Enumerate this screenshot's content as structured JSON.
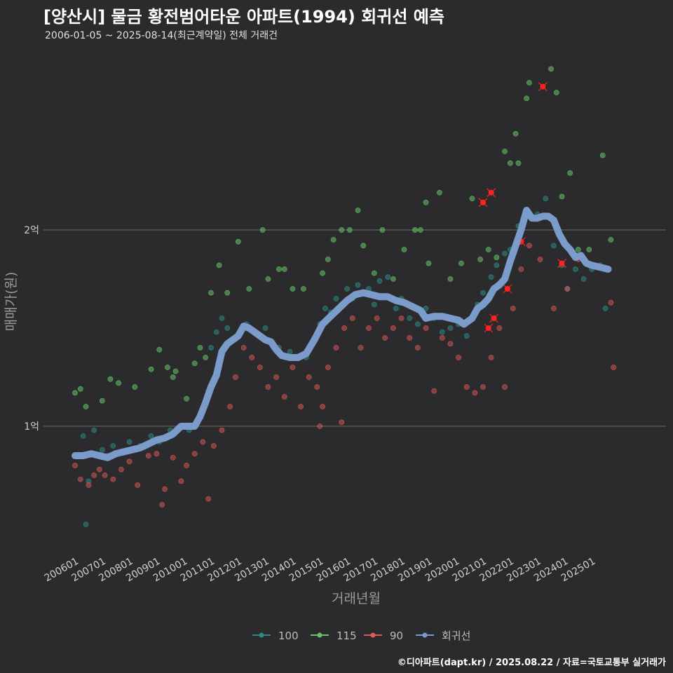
{
  "header": {
    "title": "[양산시] 물금 황전범어타운 아파트(1994) 회귀선 예측",
    "subtitle": "2006-01-05 ~ 2025-08-14(최근계약일) 전체 거래건"
  },
  "footer": {
    "credit": "©디아파트(dapt.kr) / 2025.08.22 / 자료=국토교통부 실거래가"
  },
  "colors": {
    "s100": "#2a8a84",
    "s115": "#66c466",
    "s90": "#e05a5a",
    "trend": "#7b9ccb",
    "highlight": "#ff2222"
  },
  "chart_data": {
    "type": "scatter",
    "xlabel": "거래년월",
    "ylabel": "매매가(원)",
    "x_ticks": [
      "200601",
      "200701",
      "200801",
      "200901",
      "201001",
      "201101",
      "201201",
      "201301",
      "201401",
      "201501",
      "201601",
      "201701",
      "201801",
      "201901",
      "202001",
      "202101",
      "202201",
      "202301",
      "202401",
      "202501"
    ],
    "y_ticks": [
      {
        "value": 1,
        "label": "1억"
      },
      {
        "value": 2,
        "label": "2억"
      }
    ],
    "ylim": [
      0.35,
      2.85
    ],
    "xlim": [
      2005.7,
      2026.5
    ],
    "grid": true,
    "legend_position": "bottom",
    "legend": [
      "100",
      "115",
      "90",
      "회귀선"
    ],
    "series": [
      {
        "name": "100",
        "points": [
          [
            2006.3,
            0.95
          ],
          [
            2006.5,
            0.72
          ],
          [
            2006.7,
            0.98
          ],
          [
            2007.0,
            0.88
          ],
          [
            2007.2,
            0.85
          ],
          [
            2007.4,
            0.9
          ],
          [
            2007.7,
            0.87
          ],
          [
            2008.0,
            0.92
          ],
          [
            2008.4,
            0.9
          ],
          [
            2008.8,
            0.95
          ],
          [
            2009.1,
            0.92
          ],
          [
            2009.5,
            0.98
          ],
          [
            2009.9,
            1.0
          ],
          [
            2010.2,
            0.98
          ],
          [
            2010.5,
            1.02
          ],
          [
            2010.9,
            1.18
          ],
          [
            2011.0,
            1.4
          ],
          [
            2011.2,
            1.48
          ],
          [
            2011.4,
            1.55
          ],
          [
            2011.6,
            1.5
          ],
          [
            2011.9,
            1.45
          ],
          [
            2012.3,
            1.52
          ],
          [
            2013.0,
            1.5
          ],
          [
            2013.5,
            1.4
          ],
          [
            2013.9,
            1.38
          ],
          [
            2014.5,
            1.35
          ],
          [
            2014.8,
            1.45
          ],
          [
            2015.0,
            1.52
          ],
          [
            2015.2,
            1.6
          ],
          [
            2015.4,
            1.58
          ],
          [
            2015.6,
            1.65
          ],
          [
            2015.8,
            1.62
          ],
          [
            2016.0,
            1.7
          ],
          [
            2016.2,
            1.65
          ],
          [
            2016.4,
            1.72
          ],
          [
            2016.6,
            1.68
          ],
          [
            2016.8,
            1.7
          ],
          [
            2017.0,
            1.62
          ],
          [
            2017.2,
            1.74
          ],
          [
            2017.5,
            1.76
          ],
          [
            2017.8,
            1.6
          ],
          [
            2018.0,
            1.65
          ],
          [
            2018.3,
            1.55
          ],
          [
            2018.6,
            1.52
          ],
          [
            2018.9,
            1.6
          ],
          [
            2019.2,
            1.55
          ],
          [
            2019.5,
            1.48
          ],
          [
            2019.8,
            1.5
          ],
          [
            2020.1,
            1.52
          ],
          [
            2020.4,
            1.46
          ],
          [
            2020.6,
            1.55
          ],
          [
            2020.8,
            1.62
          ],
          [
            2021.0,
            1.68
          ],
          [
            2021.3,
            1.76
          ],
          [
            2021.5,
            1.82
          ],
          [
            2021.8,
            1.88
          ],
          [
            2022.0,
            1.9
          ],
          [
            2022.3,
            2.02
          ],
          [
            2022.6,
            2.1
          ],
          [
            2023.0,
            2.08
          ],
          [
            2023.3,
            2.16
          ],
          [
            2023.6,
            1.92
          ],
          [
            2023.9,
            1.82
          ],
          [
            2024.1,
            1.7
          ],
          [
            2024.4,
            1.8
          ],
          [
            2024.7,
            1.75
          ],
          [
            2025.0,
            1.8
          ],
          [
            2025.3,
            1.82
          ],
          [
            2025.5,
            1.6
          ],
          [
            2006.4,
            0.5
          ]
        ]
      },
      {
        "name": "115",
        "points": [
          [
            2006.0,
            1.17
          ],
          [
            2006.2,
            1.19
          ],
          [
            2006.4,
            1.1
          ],
          [
            2007.0,
            1.13
          ],
          [
            2007.3,
            1.24
          ],
          [
            2007.6,
            1.22
          ],
          [
            2008.2,
            1.2
          ],
          [
            2008.8,
            1.29
          ],
          [
            2009.1,
            1.39
          ],
          [
            2009.4,
            1.3
          ],
          [
            2009.6,
            1.25
          ],
          [
            2009.7,
            1.28
          ],
          [
            2010.1,
            1.14
          ],
          [
            2010.4,
            1.32
          ],
          [
            2010.6,
            1.4
          ],
          [
            2010.8,
            1.35
          ],
          [
            2011.0,
            1.68
          ],
          [
            2011.3,
            1.82
          ],
          [
            2011.6,
            1.68
          ],
          [
            2012.0,
            1.94
          ],
          [
            2012.4,
            1.7
          ],
          [
            2012.9,
            2.0
          ],
          [
            2013.1,
            1.75
          ],
          [
            2013.5,
            1.8
          ],
          [
            2013.7,
            1.8
          ],
          [
            2014.0,
            1.7
          ],
          [
            2014.4,
            1.7
          ],
          [
            2015.1,
            1.78
          ],
          [
            2015.3,
            1.85
          ],
          [
            2015.5,
            1.95
          ],
          [
            2015.8,
            2.0
          ],
          [
            2016.1,
            2.0
          ],
          [
            2016.4,
            2.1
          ],
          [
            2016.6,
            1.92
          ],
          [
            2017.0,
            1.78
          ],
          [
            2017.3,
            2.0
          ],
          [
            2017.7,
            1.75
          ],
          [
            2018.1,
            1.9
          ],
          [
            2018.5,
            2.0
          ],
          [
            2018.7,
            2.0
          ],
          [
            2018.9,
            2.14
          ],
          [
            2019.0,
            1.83
          ],
          [
            2019.4,
            2.19
          ],
          [
            2019.8,
            1.75
          ],
          [
            2020.2,
            1.83
          ],
          [
            2020.6,
            2.16
          ],
          [
            2020.9,
            1.85
          ],
          [
            2021.2,
            1.9
          ],
          [
            2021.5,
            1.86
          ],
          [
            2021.8,
            2.4
          ],
          [
            2022.0,
            2.34
          ],
          [
            2022.2,
            2.49
          ],
          [
            2022.3,
            2.34
          ],
          [
            2022.6,
            2.67
          ],
          [
            2022.7,
            2.75
          ],
          [
            2023.5,
            2.82
          ],
          [
            2023.7,
            2.7
          ],
          [
            2023.9,
            2.17
          ],
          [
            2024.2,
            2.29
          ],
          [
            2024.5,
            1.9
          ],
          [
            2024.9,
            1.9
          ],
          [
            2025.4,
            2.38
          ],
          [
            2025.7,
            1.95
          ]
        ]
      },
      {
        "name": "90",
        "points": [
          [
            2006.0,
            0.8
          ],
          [
            2006.2,
            0.73
          ],
          [
            2006.5,
            0.7
          ],
          [
            2006.7,
            0.75
          ],
          [
            2006.9,
            0.78
          ],
          [
            2007.1,
            0.75
          ],
          [
            2007.4,
            0.73
          ],
          [
            2007.7,
            0.78
          ],
          [
            2008.0,
            0.82
          ],
          [
            2008.3,
            0.7
          ],
          [
            2008.7,
            0.85
          ],
          [
            2009.0,
            0.86
          ],
          [
            2009.3,
            0.68
          ],
          [
            2009.6,
            0.84
          ],
          [
            2009.9,
            0.72
          ],
          [
            2010.1,
            0.8
          ],
          [
            2010.4,
            0.86
          ],
          [
            2010.7,
            0.92
          ],
          [
            2010.9,
            0.63
          ],
          [
            2011.1,
            0.9
          ],
          [
            2011.4,
            0.98
          ],
          [
            2011.7,
            1.1
          ],
          [
            2011.9,
            1.25
          ],
          [
            2012.2,
            1.4
          ],
          [
            2012.5,
            1.35
          ],
          [
            2012.8,
            1.3
          ],
          [
            2013.1,
            1.2
          ],
          [
            2013.4,
            1.25
          ],
          [
            2013.7,
            1.15
          ],
          [
            2014.0,
            1.3
          ],
          [
            2014.3,
            1.1
          ],
          [
            2014.6,
            1.25
          ],
          [
            2014.9,
            1.2
          ],
          [
            2015.1,
            1.1
          ],
          [
            2015.3,
            1.3
          ],
          [
            2015.6,
            1.4
          ],
          [
            2015.8,
            1.02
          ],
          [
            2015.9,
            1.5
          ],
          [
            2016.2,
            1.55
          ],
          [
            2016.5,
            1.4
          ],
          [
            2016.8,
            1.5
          ],
          [
            2017.1,
            1.55
          ],
          [
            2017.4,
            1.45
          ],
          [
            2017.7,
            1.5
          ],
          [
            2018.0,
            1.55
          ],
          [
            2018.3,
            1.45
          ],
          [
            2018.6,
            1.4
          ],
          [
            2018.9,
            1.5
          ],
          [
            2019.2,
            1.18
          ],
          [
            2019.5,
            1.45
          ],
          [
            2019.8,
            1.42
          ],
          [
            2020.1,
            1.35
          ],
          [
            2020.4,
            1.2
          ],
          [
            2020.7,
            1.17
          ],
          [
            2021.0,
            1.2
          ],
          [
            2021.3,
            1.35
          ],
          [
            2021.6,
            1.5
          ],
          [
            2021.8,
            1.2
          ],
          [
            2022.1,
            1.6
          ],
          [
            2022.4,
            1.8
          ],
          [
            2022.7,
            1.92
          ],
          [
            2023.1,
            1.85
          ],
          [
            2023.6,
            1.6
          ],
          [
            2024.1,
            1.7
          ],
          [
            2024.5,
            1.85
          ],
          [
            2025.7,
            1.63
          ],
          [
            2025.8,
            1.3
          ],
          [
            2008.1,
            0.88
          ],
          [
            2009.2,
            0.6
          ],
          [
            2015.0,
            1.0
          ]
        ]
      },
      {
        "name": "highlight",
        "points": [
          [
            2021.0,
            2.14
          ],
          [
            2021.3,
            2.19
          ],
          [
            2023.2,
            2.73
          ],
          [
            2022.4,
            1.94
          ],
          [
            2023.9,
            1.83
          ],
          [
            2021.9,
            1.7
          ],
          [
            2021.4,
            1.55
          ],
          [
            2021.2,
            1.5
          ]
        ]
      },
      {
        "name": "회귀선",
        "points": [
          [
            2006.0,
            0.85
          ],
          [
            2006.3,
            0.85
          ],
          [
            2006.6,
            0.86
          ],
          [
            2006.9,
            0.85
          ],
          [
            2007.2,
            0.84
          ],
          [
            2007.5,
            0.86
          ],
          [
            2007.8,
            0.87
          ],
          [
            2008.1,
            0.88
          ],
          [
            2008.4,
            0.89
          ],
          [
            2008.7,
            0.91
          ],
          [
            2009.0,
            0.93
          ],
          [
            2009.3,
            0.94
          ],
          [
            2009.6,
            0.96
          ],
          [
            2009.9,
            1.0
          ],
          [
            2010.2,
            1.0
          ],
          [
            2010.4,
            1.0
          ],
          [
            2010.6,
            1.05
          ],
          [
            2010.8,
            1.12
          ],
          [
            2011.0,
            1.2
          ],
          [
            2011.2,
            1.26
          ],
          [
            2011.4,
            1.38
          ],
          [
            2011.6,
            1.42
          ],
          [
            2011.8,
            1.44
          ],
          [
            2012.0,
            1.46
          ],
          [
            2012.2,
            1.51
          ],
          [
            2012.4,
            1.5
          ],
          [
            2012.6,
            1.48
          ],
          [
            2012.8,
            1.46
          ],
          [
            2013.0,
            1.44
          ],
          [
            2013.2,
            1.43
          ],
          [
            2013.4,
            1.39
          ],
          [
            2013.6,
            1.36
          ],
          [
            2013.9,
            1.35
          ],
          [
            2014.2,
            1.35
          ],
          [
            2014.5,
            1.37
          ],
          [
            2014.8,
            1.44
          ],
          [
            2015.1,
            1.52
          ],
          [
            2015.4,
            1.56
          ],
          [
            2015.7,
            1.6
          ],
          [
            2016.0,
            1.64
          ],
          [
            2016.3,
            1.67
          ],
          [
            2016.6,
            1.68
          ],
          [
            2016.9,
            1.67
          ],
          [
            2017.2,
            1.66
          ],
          [
            2017.5,
            1.66
          ],
          [
            2017.8,
            1.64
          ],
          [
            2018.1,
            1.63
          ],
          [
            2018.4,
            1.61
          ],
          [
            2018.7,
            1.59
          ],
          [
            2018.9,
            1.55
          ],
          [
            2019.2,
            1.56
          ],
          [
            2019.5,
            1.56
          ],
          [
            2019.8,
            1.55
          ],
          [
            2020.1,
            1.54
          ],
          [
            2020.3,
            1.52
          ],
          [
            2020.6,
            1.55
          ],
          [
            2020.8,
            1.6
          ],
          [
            2021.0,
            1.62
          ],
          [
            2021.2,
            1.65
          ],
          [
            2021.4,
            1.7
          ],
          [
            2021.6,
            1.72
          ],
          [
            2021.8,
            1.75
          ],
          [
            2022.0,
            1.84
          ],
          [
            2022.2,
            1.92
          ],
          [
            2022.4,
            2.0
          ],
          [
            2022.6,
            2.1
          ],
          [
            2022.8,
            2.06
          ],
          [
            2023.0,
            2.06
          ],
          [
            2023.2,
            2.07
          ],
          [
            2023.4,
            2.07
          ],
          [
            2023.6,
            2.05
          ],
          [
            2023.8,
            1.98
          ],
          [
            2024.0,
            1.93
          ],
          [
            2024.2,
            1.9
          ],
          [
            2024.4,
            1.86
          ],
          [
            2024.6,
            1.87
          ],
          [
            2024.8,
            1.83
          ],
          [
            2025.0,
            1.82
          ],
          [
            2025.3,
            1.81
          ],
          [
            2025.6,
            1.8
          ]
        ]
      }
    ]
  }
}
